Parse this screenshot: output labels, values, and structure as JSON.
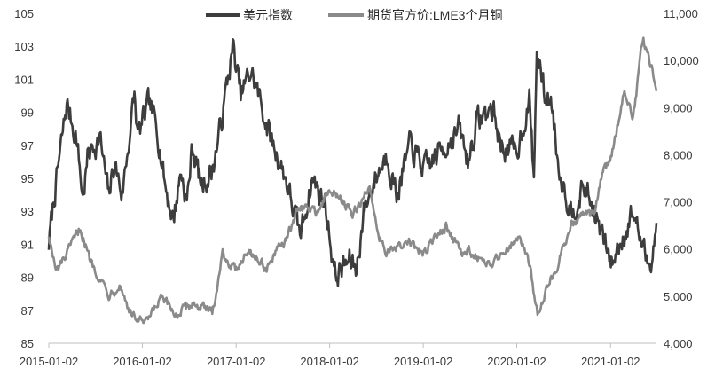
{
  "chart_data": {
    "type": "line",
    "title": "",
    "xlabel": "",
    "ylabel_left": "",
    "ylabel_right": "",
    "legend_position": "top-center",
    "grid": false,
    "x_ticks": [
      "2015-01-02",
      "2016-01-02",
      "2017-01-02",
      "2018-01-02",
      "2019-01-02",
      "2020-01-02",
      "2021-01-02"
    ],
    "x_range": [
      "2015-01-02",
      "2021-06-30"
    ],
    "left_axis": {
      "range": [
        85,
        105
      ],
      "ticks": [
        "85",
        "87",
        "89",
        "91",
        "93",
        "95",
        "97",
        "99",
        "101",
        "103",
        "105"
      ]
    },
    "right_axis": {
      "range": [
        4000,
        11000
      ],
      "ticks": [
        "4,000",
        "5,000",
        "6,000",
        "7,000",
        "8,000",
        "9,000",
        "10,000",
        "11,000"
      ]
    },
    "series": [
      {
        "name": "美元指数",
        "axis": "left",
        "color": "#3d3d3d",
        "points": [
          [
            "2015-01-02",
            91.0
          ],
          [
            "2015-01-20",
            93.5
          ],
          [
            "2015-03-13",
            99.5
          ],
          [
            "2015-04-20",
            97.5
          ],
          [
            "2015-05-15",
            93.8
          ],
          [
            "2015-06-05",
            96.5
          ],
          [
            "2015-07-20",
            97.5
          ],
          [
            "2015-08-24",
            93.8
          ],
          [
            "2015-09-15",
            96.0
          ],
          [
            "2015-10-15",
            94.0
          ],
          [
            "2015-12-02",
            100.0
          ],
          [
            "2015-12-15",
            97.5
          ],
          [
            "2016-01-28",
            99.5
          ],
          [
            "2016-03-01",
            98.0
          ],
          [
            "2016-04-01",
            94.5
          ],
          [
            "2016-05-02",
            92.5
          ],
          [
            "2016-06-01",
            95.5
          ],
          [
            "2016-06-24",
            93.5
          ],
          [
            "2016-07-15",
            97.0
          ],
          [
            "2016-08-20",
            94.5
          ],
          [
            "2016-10-01",
            95.5
          ],
          [
            "2016-11-01",
            98.0
          ],
          [
            "2016-12-20",
            103.0
          ],
          [
            "2017-01-20",
            100.0
          ],
          [
            "2017-03-01",
            101.5
          ],
          [
            "2017-04-01",
            100.0
          ],
          [
            "2017-05-15",
            97.5
          ],
          [
            "2017-07-15",
            95.0
          ],
          [
            "2017-09-08",
            91.5
          ],
          [
            "2017-10-26",
            95.0
          ],
          [
            "2017-12-15",
            93.5
          ],
          [
            "2018-01-25",
            89.0
          ],
          [
            "2018-02-15",
            89.5
          ],
          [
            "2018-03-20",
            90.0
          ],
          [
            "2018-04-17",
            89.5
          ],
          [
            "2018-05-15",
            93.0
          ],
          [
            "2018-06-28",
            95.0
          ],
          [
            "2018-08-15",
            96.5
          ],
          [
            "2018-09-20",
            94.0
          ],
          [
            "2018-11-12",
            97.0
          ],
          [
            "2019-01-10",
            95.5
          ],
          [
            "2019-03-01",
            96.5
          ],
          [
            "2019-05-23",
            98.0
          ],
          [
            "2019-06-25",
            96.0
          ],
          [
            "2019-08-01",
            98.5
          ],
          [
            "2019-10-01",
            99.2
          ],
          [
            "2019-11-01",
            97.0
          ],
          [
            "2019-12-31",
            96.5
          ],
          [
            "2020-02-20",
            99.8
          ],
          [
            "2020-03-09",
            94.8
          ],
          [
            "2020-03-20",
            102.8
          ],
          [
            "2020-04-20",
            100.0
          ],
          [
            "2020-05-20",
            99.5
          ],
          [
            "2020-06-10",
            96.0
          ],
          [
            "2020-07-31",
            93.0
          ],
          [
            "2020-09-25",
            94.5
          ],
          [
            "2020-11-30",
            91.5
          ],
          [
            "2021-01-06",
            89.8
          ],
          [
            "2021-03-31",
            93.0
          ],
          [
            "2021-05-25",
            89.8
          ],
          [
            "2021-06-15",
            90.5
          ],
          [
            "2021-06-30",
            92.3
          ]
        ]
      },
      {
        "name": "期货官方价:LME3个月铜",
        "axis": "right",
        "color": "#8a8a8a",
        "points": [
          [
            "2015-01-02",
            6300
          ],
          [
            "2015-01-30",
            5500
          ],
          [
            "2015-03-15",
            5900
          ],
          [
            "2015-05-05",
            6450
          ],
          [
            "2015-06-10",
            5800
          ],
          [
            "2015-07-20",
            5400
          ],
          [
            "2015-08-24",
            5050
          ],
          [
            "2015-10-05",
            5250
          ],
          [
            "2015-11-20",
            4600
          ],
          [
            "2016-01-15",
            4400
          ],
          [
            "2016-03-15",
            4950
          ],
          [
            "2016-05-15",
            4600
          ],
          [
            "2016-07-15",
            4850
          ],
          [
            "2016-10-01",
            4650
          ],
          [
            "2016-11-10",
            5900
          ],
          [
            "2016-12-30",
            5550
          ],
          [
            "2017-02-15",
            6000
          ],
          [
            "2017-05-01",
            5600
          ],
          [
            "2017-07-25",
            6300
          ],
          [
            "2017-09-05",
            6900
          ],
          [
            "2017-11-15",
            6800
          ],
          [
            "2017-12-28",
            7200
          ],
          [
            "2018-02-15",
            7100
          ],
          [
            "2018-04-01",
            6700
          ],
          [
            "2018-06-07",
            7300
          ],
          [
            "2018-07-15",
            6250
          ],
          [
            "2018-08-20",
            5900
          ],
          [
            "2018-11-01",
            6150
          ],
          [
            "2018-12-31",
            5900
          ],
          [
            "2019-04-01",
            6500
          ],
          [
            "2019-05-31",
            5900
          ],
          [
            "2019-07-15",
            5950
          ],
          [
            "2019-09-02",
            5600
          ],
          [
            "2019-11-01",
            5900
          ],
          [
            "2020-01-10",
            6300
          ],
          [
            "2020-02-20",
            5700
          ],
          [
            "2020-03-23",
            4650
          ],
          [
            "2020-04-30",
            5200
          ],
          [
            "2020-06-15",
            5750
          ],
          [
            "2020-07-31",
            6500
          ],
          [
            "2020-09-15",
            6750
          ],
          [
            "2020-10-30",
            6700
          ],
          [
            "2020-11-30",
            7650
          ],
          [
            "2020-12-31",
            7800
          ],
          [
            "2021-02-25",
            9400
          ],
          [
            "2021-03-31",
            8800
          ],
          [
            "2021-05-10",
            10550
          ],
          [
            "2021-05-25",
            10100
          ],
          [
            "2021-06-15",
            9800
          ],
          [
            "2021-06-30",
            9350
          ]
        ]
      }
    ]
  }
}
